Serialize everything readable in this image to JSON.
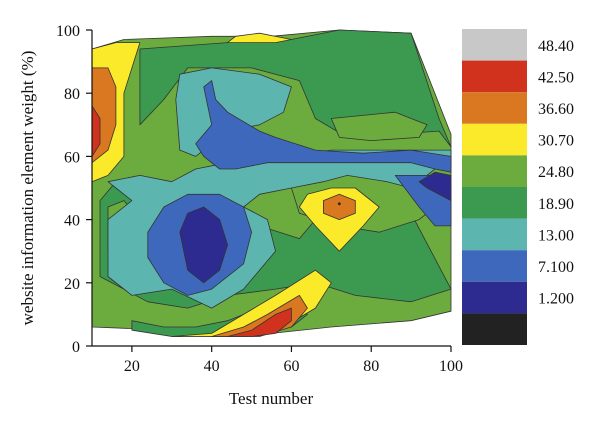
{
  "chart_data": {
    "type": "contour",
    "title": "",
    "xlabel": "Test number",
    "ylabel": "website information element weight (%)",
    "xlim": [
      10,
      100
    ],
    "ylim": [
      0,
      100
    ],
    "xticks": [
      20,
      40,
      60,
      80,
      100
    ],
    "yticks": [
      0,
      20,
      40,
      60,
      80,
      100
    ],
    "legend_position": "right",
    "legend": [
      {
        "label": "48.40",
        "color": "#c8c8c8"
      },
      {
        "label": "42.50",
        "color": "#d0321e"
      },
      {
        "label": "36.60",
        "color": "#d97820"
      },
      {
        "label": "30.70",
        "color": "#fbea2a"
      },
      {
        "label": "24.80",
        "color": "#6cac3f"
      },
      {
        "label": "18.90",
        "color": "#3b9a4f"
      },
      {
        "label": "13.00",
        "color": "#5db5b0"
      },
      {
        "label": "7.100",
        "color": "#3e68bc"
      },
      {
        "label": "1.200",
        "color": "#2d2b8f"
      },
      {
        "label": "",
        "color": "#222222"
      }
    ],
    "regions": [
      {
        "level": "24.80",
        "color": "#6cac3f",
        "points": [
          [
            10,
            94
          ],
          [
            18,
            97
          ],
          [
            40,
            98
          ],
          [
            55,
            98
          ],
          [
            72,
            100
          ],
          [
            90,
            99
          ],
          [
            100,
            67
          ],
          [
            100,
            11
          ],
          [
            90,
            8
          ],
          [
            70,
            6
          ],
          [
            55,
            4
          ],
          [
            40,
            3
          ],
          [
            30,
            5
          ],
          [
            10,
            6
          ]
        ]
      },
      {
        "level": "18.90",
        "color": "#3b9a4f",
        "points": [
          [
            22,
            94
          ],
          [
            44,
            96
          ],
          [
            60,
            97
          ],
          [
            72,
            100
          ],
          [
            90,
            99
          ],
          [
            97,
            72
          ],
          [
            100,
            63
          ],
          [
            97,
            68
          ],
          [
            74,
            66
          ],
          [
            66,
            72
          ],
          [
            62,
            84
          ],
          [
            50,
            88
          ],
          [
            34,
            88
          ],
          [
            28,
            78
          ],
          [
            22,
            70
          ]
        ]
      },
      {
        "level": "18.90",
        "color": "#3b9a4f",
        "points": [
          [
            12,
            22
          ],
          [
            12,
            46
          ],
          [
            16,
            52
          ],
          [
            22,
            50
          ],
          [
            30,
            48
          ],
          [
            34,
            54
          ],
          [
            42,
            54
          ],
          [
            46,
            42
          ],
          [
            52,
            38
          ],
          [
            62,
            34
          ],
          [
            66,
            40
          ],
          [
            76,
            46
          ],
          [
            90,
            42
          ],
          [
            100,
            18
          ],
          [
            90,
            14
          ],
          [
            76,
            16
          ],
          [
            66,
            20
          ],
          [
            56,
            18
          ],
          [
            44,
            16
          ],
          [
            34,
            12
          ],
          [
            24,
            14
          ]
        ]
      },
      {
        "level": "18.90",
        "color": "#3b9a4f",
        "points": [
          [
            20,
            8
          ],
          [
            28,
            6
          ],
          [
            36,
            6
          ],
          [
            44,
            8
          ],
          [
            52,
            12
          ],
          [
            60,
            16
          ],
          [
            64,
            10
          ],
          [
            60,
            6
          ],
          [
            44,
            3
          ],
          [
            30,
            3
          ],
          [
            20,
            5
          ]
        ]
      },
      {
        "level": "24.80",
        "color": "#6cac3f",
        "points": [
          [
            70,
            72
          ],
          [
            86,
            74
          ],
          [
            94,
            70
          ],
          [
            92,
            66
          ],
          [
            80,
            65
          ],
          [
            72,
            66
          ]
        ]
      },
      {
        "level": "24.80",
        "color": "#6cac3f",
        "points": [
          [
            60,
            50
          ],
          [
            70,
            56
          ],
          [
            88,
            54
          ],
          [
            96,
            44
          ],
          [
            92,
            40
          ],
          [
            82,
            36
          ],
          [
            72,
            38
          ],
          [
            62,
            42
          ]
        ]
      },
      {
        "level": "24.80",
        "color": "#6cac3f",
        "points": [
          [
            14,
            30
          ],
          [
            14,
            44
          ],
          [
            18,
            46
          ],
          [
            22,
            40
          ],
          [
            20,
            30
          ]
        ]
      },
      {
        "level": "13.00",
        "color": "#5db5b0",
        "points": [
          [
            14,
            52
          ],
          [
            22,
            54
          ],
          [
            30,
            52
          ],
          [
            36,
            56
          ],
          [
            44,
            58
          ],
          [
            58,
            60
          ],
          [
            70,
            62
          ],
          [
            86,
            62
          ],
          [
            100,
            62
          ],
          [
            100,
            56
          ],
          [
            96,
            56
          ],
          [
            90,
            50
          ],
          [
            84,
            52
          ],
          [
            74,
            54
          ],
          [
            68,
            52
          ],
          [
            60,
            50
          ],
          [
            52,
            48
          ],
          [
            48,
            44
          ],
          [
            54,
            40
          ],
          [
            56,
            30
          ],
          [
            48,
            18
          ],
          [
            40,
            12
          ],
          [
            30,
            18
          ],
          [
            20,
            16
          ],
          [
            14,
            22
          ],
          [
            14,
            40
          ],
          [
            20,
            46
          ],
          [
            16,
            50
          ]
        ]
      },
      {
        "level": "13.00",
        "color": "#5db5b0",
        "points": [
          [
            31,
            78
          ],
          [
            32,
            86
          ],
          [
            40,
            88
          ],
          [
            52,
            86
          ],
          [
            60,
            82
          ],
          [
            58,
            74
          ],
          [
            52,
            70
          ],
          [
            44,
            68
          ],
          [
            40,
            64
          ],
          [
            36,
            60
          ],
          [
            32,
            62
          ]
        ]
      },
      {
        "level": "7.100",
        "color": "#3e68bc",
        "points": [
          [
            38,
            82
          ],
          [
            40,
            84
          ],
          [
            41,
            78
          ],
          [
            44,
            74
          ],
          [
            52,
            68
          ],
          [
            56,
            66
          ],
          [
            66,
            62
          ],
          [
            78,
            61
          ],
          [
            90,
            62
          ],
          [
            100,
            60
          ],
          [
            100,
            55
          ],
          [
            96,
            56
          ],
          [
            90,
            58
          ],
          [
            80,
            58
          ],
          [
            66,
            58
          ],
          [
            54,
            58
          ],
          [
            46,
            56
          ],
          [
            42,
            56
          ],
          [
            38,
            60
          ],
          [
            36,
            64
          ],
          [
            40,
            70
          ]
        ]
      },
      {
        "level": "7.100",
        "color": "#3e68bc",
        "points": [
          [
            24,
            36
          ],
          [
            28,
            44
          ],
          [
            34,
            48
          ],
          [
            42,
            48
          ],
          [
            48,
            44
          ],
          [
            50,
            36
          ],
          [
            48,
            26
          ],
          [
            40,
            18
          ],
          [
            34,
            16
          ],
          [
            28,
            20
          ],
          [
            24,
            28
          ]
        ]
      },
      {
        "level": "7.100",
        "color": "#3e68bc",
        "points": [
          [
            86,
            54
          ],
          [
            92,
            44
          ],
          [
            96,
            38
          ],
          [
            100,
            38
          ],
          [
            100,
            50
          ],
          [
            96,
            54
          ]
        ]
      },
      {
        "level": "1.200",
        "color": "#2d2b8f",
        "points": [
          [
            32,
            36
          ],
          [
            34,
            42
          ],
          [
            38,
            44
          ],
          [
            42,
            40
          ],
          [
            44,
            32
          ],
          [
            42,
            24
          ],
          [
            38,
            20
          ],
          [
            34,
            24
          ]
        ]
      },
      {
        "level": "1.200",
        "color": "#2d2b8f",
        "points": [
          [
            92,
            52
          ],
          [
            94,
            50
          ],
          [
            100,
            46
          ],
          [
            100,
            54
          ],
          [
            96,
            55
          ]
        ]
      },
      {
        "level": "30.70",
        "color": "#fbea2a",
        "points": [
          [
            10,
            94
          ],
          [
            16,
            96
          ],
          [
            22,
            96
          ],
          [
            20,
            88
          ],
          [
            18,
            80
          ],
          [
            18,
            68
          ],
          [
            18,
            60
          ],
          [
            14,
            54
          ],
          [
            10,
            52
          ]
        ]
      },
      {
        "level": "36.60",
        "color": "#d97820",
        "points": [
          [
            10,
            88
          ],
          [
            14,
            88
          ],
          [
            16,
            82
          ],
          [
            16,
            70
          ],
          [
            14,
            62
          ],
          [
            10,
            58
          ]
        ]
      },
      {
        "level": "42.50",
        "color": "#d0321e",
        "points": [
          [
            10,
            76
          ],
          [
            12,
            72
          ],
          [
            12,
            64
          ],
          [
            10,
            60
          ]
        ]
      },
      {
        "level": "30.70",
        "color": "#fbea2a",
        "points": [
          [
            44,
            96
          ],
          [
            56,
            96
          ],
          [
            60,
            97
          ],
          [
            52,
            99
          ],
          [
            46,
            98
          ]
        ]
      },
      {
        "level": "30.70",
        "color": "#fbea2a",
        "points": [
          [
            64,
            48
          ],
          [
            70,
            50
          ],
          [
            76,
            50
          ],
          [
            82,
            44
          ],
          [
            78,
            38
          ],
          [
            72,
            30
          ],
          [
            66,
            38
          ],
          [
            62,
            44
          ]
        ]
      },
      {
        "level": "36.60",
        "color": "#d97820",
        "points": [
          [
            68,
            46
          ],
          [
            72,
            48
          ],
          [
            76,
            46
          ],
          [
            76,
            42
          ],
          [
            72,
            40
          ],
          [
            68,
            42
          ]
        ]
      },
      {
        "level": "30.70",
        "color": "#fbea2a",
        "points": [
          [
            30,
            3
          ],
          [
            40,
            4
          ],
          [
            48,
            10
          ],
          [
            56,
            16
          ],
          [
            66,
            24
          ],
          [
            70,
            20
          ],
          [
            66,
            12
          ],
          [
            58,
            6
          ],
          [
            48,
            3
          ],
          [
            38,
            3
          ]
        ]
      },
      {
        "level": "36.60",
        "color": "#d97820",
        "points": [
          [
            40,
            3
          ],
          [
            48,
            6
          ],
          [
            54,
            10
          ],
          [
            62,
            16
          ],
          [
            64,
            12
          ],
          [
            60,
            6
          ],
          [
            52,
            3
          ]
        ]
      },
      {
        "level": "42.50",
        "color": "#d0321e",
        "points": [
          [
            44,
            3
          ],
          [
            50,
            5
          ],
          [
            56,
            10
          ],
          [
            60,
            12
          ],
          [
            60,
            8
          ],
          [
            56,
            4
          ],
          [
            50,
            3
          ]
        ]
      }
    ]
  }
}
